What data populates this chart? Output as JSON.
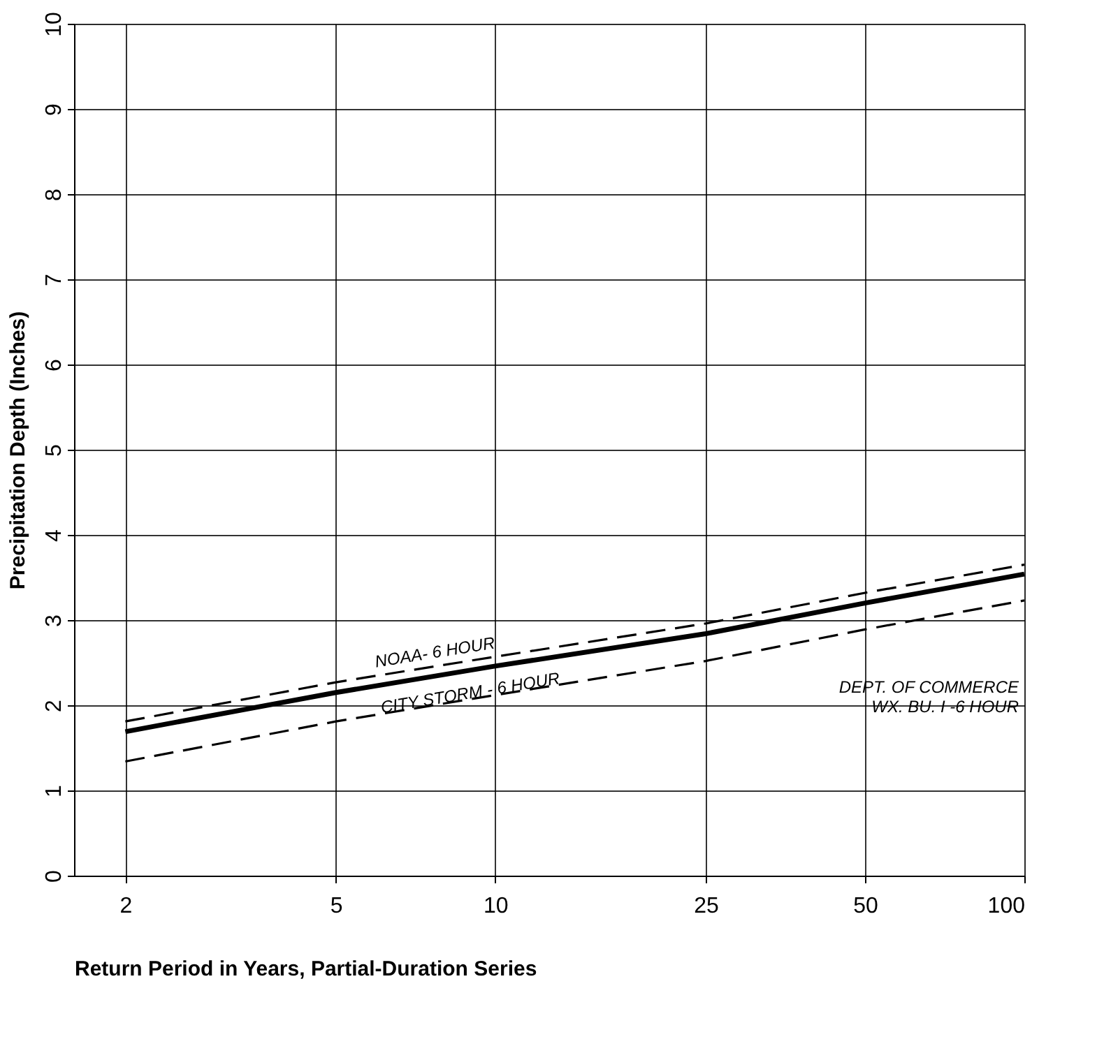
{
  "chart_data": {
    "type": "line",
    "xlabel": "Return Period in Years, Partial-Duration Series",
    "ylabel": "Precipitation Depth (Inches)",
    "x": [
      2,
      5,
      10,
      25,
      50,
      100
    ],
    "series": [
      {
        "name": "NOAA- 6 HOUR",
        "color": "#000000",
        "line_style": "dashed",
        "values": [
          1.81,
          2.27,
          2.57,
          2.96,
          3.32,
          3.65
        ]
      },
      {
        "name": "CITY STORM - 6 HOUR",
        "color": "#000000",
        "line_style": "solid",
        "values": [
          1.69,
          2.15,
          2.46,
          2.84,
          3.2,
          3.54
        ]
      },
      {
        "name": "DEPT. OF COMMERCE\nWX. BU. I -6 HOUR",
        "color": "#000000",
        "line_style": "dashed",
        "values": [
          1.34,
          1.81,
          2.12,
          2.52,
          2.89,
          3.23
        ]
      }
    ],
    "log": "x",
    "xlim": [
      1.6,
      100
    ],
    "xticks": [
      2,
      5,
      10,
      25,
      50,
      100
    ],
    "ylim": [
      0,
      10
    ],
    "yticks": [
      0,
      1,
      2,
      3,
      4,
      5,
      6,
      7,
      8,
      9,
      10
    ],
    "grid": true,
    "marker": "none"
  }
}
